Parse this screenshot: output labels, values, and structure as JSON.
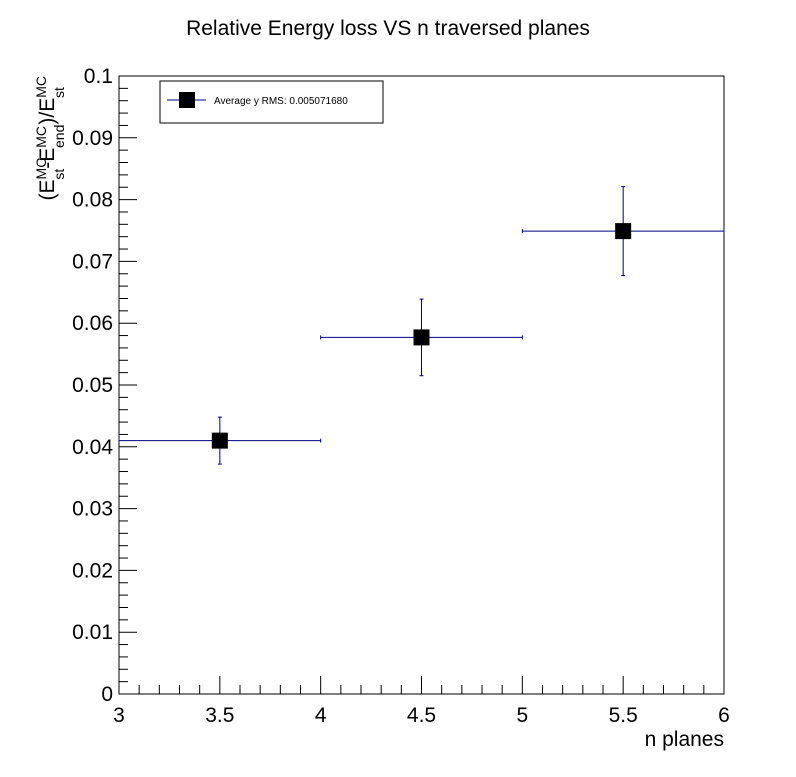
{
  "chart_data": {
    "type": "scatter",
    "title": "Relative Energy loss VS n traversed planes",
    "xlabel": "n planes",
    "ylabel_parts": {
      "open": "(E",
      "sup1": "MC",
      "sub1": "st",
      "dash": "-E",
      "sup2": "MC",
      "sub2": "end",
      "close": ")/E",
      "sup3": "MC",
      "sub3": "st"
    },
    "xlim": [
      3,
      6
    ],
    "ylim": [
      0,
      0.1
    ],
    "x_ticks": [
      "3",
      "3.5",
      "4",
      "4.5",
      "5",
      "5.5",
      "6"
    ],
    "x_tick_values": [
      3,
      3.5,
      4,
      4.5,
      5,
      5.5,
      6
    ],
    "y_ticks": [
      "0",
      "0.01",
      "0.02",
      "0.03",
      "0.04",
      "0.05",
      "0.06",
      "0.07",
      "0.08",
      "0.09",
      "0.1"
    ],
    "y_tick_values": [
      0,
      0.01,
      0.02,
      0.03,
      0.04,
      0.05,
      0.06,
      0.07,
      0.08,
      0.09,
      0.1
    ],
    "grid": false,
    "legend_position": "top-left",
    "series": [
      {
        "name": "Average y RMS: 0.005071680",
        "marker": "square",
        "marker_color": "#000000",
        "error_color": "#000080",
        "points": [
          {
            "x": 3.5,
            "y": 0.041,
            "xerr": 0.5,
            "yerr_low": 0.0038,
            "yerr_high": 0.0038
          },
          {
            "x": 4.5,
            "y": 0.0577,
            "xerr": 0.5,
            "yerr_low": 0.0062,
            "yerr_high": 0.0062
          },
          {
            "x": 5.5,
            "y": 0.0749,
            "xerr": 0.5,
            "yerr_low": 0.0072,
            "yerr_high": 0.0072
          }
        ]
      }
    ]
  }
}
